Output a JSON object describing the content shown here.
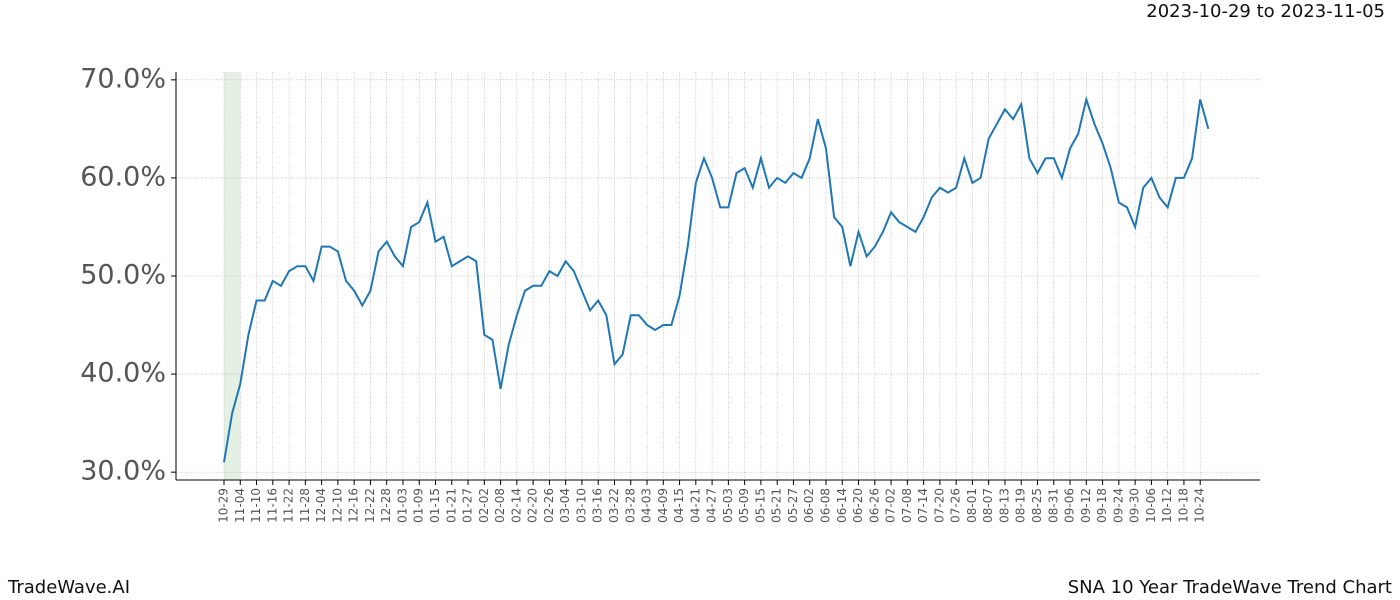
{
  "chart_data": {
    "type": "line",
    "subtitle": "2023-10-29 to 2023-11-05",
    "footer_left": "TradeWave.AI",
    "footer_right": "SNA 10 Year TradeWave Trend Chart",
    "categories": [
      "10-29",
      null,
      "11-04",
      null,
      "11-10",
      null,
      "11-16",
      null,
      "11-22",
      null,
      "11-28",
      null,
      "12-04",
      null,
      "12-10",
      null,
      "12-16",
      null,
      "12-22",
      null,
      "12-28",
      null,
      "01-03",
      null,
      "01-09",
      null,
      "01-15",
      null,
      "01-21",
      null,
      "01-27",
      null,
      "02-02",
      null,
      "02-08",
      null,
      "02-14",
      null,
      "02-20",
      null,
      "02-26",
      null,
      "03-04",
      null,
      "03-10",
      null,
      "03-16",
      null,
      "03-22",
      null,
      "03-28",
      null,
      "04-03",
      null,
      "04-09",
      null,
      "04-15",
      null,
      "04-21",
      null,
      "04-27",
      null,
      "05-03",
      null,
      "05-09",
      null,
      "05-15",
      null,
      "05-21",
      null,
      "05-27",
      null,
      "06-02",
      null,
      "06-08",
      null,
      "06-14",
      null,
      "06-20",
      null,
      "06-26",
      null,
      "07-02",
      null,
      "07-08",
      null,
      "07-14",
      null,
      "07-20",
      null,
      "07-26",
      null,
      "08-01",
      null,
      "08-07",
      null,
      "08-13",
      null,
      "08-19",
      null,
      "08-25",
      null,
      "08-31",
      null,
      "09-06",
      null,
      "09-12",
      null,
      "09-18",
      null,
      "09-24",
      null,
      "09-30",
      null,
      "10-06",
      null,
      "10-12",
      null,
      "10-18",
      null,
      "10-24",
      null
    ],
    "series": [
      {
        "color": "#1f77b4",
        "values": [
          31,
          36,
          39,
          44,
          47.5,
          47.5,
          49.5,
          49,
          50.5,
          51,
          51,
          49.5,
          53,
          53,
          52.5,
          49.5,
          48.5,
          47,
          48.5,
          52.5,
          53.5,
          52,
          51,
          55,
          55.5,
          57.5,
          53.5,
          54,
          51,
          51.5,
          52,
          51.5,
          44,
          43.5,
          38.5,
          43,
          46,
          48.5,
          49,
          49,
          50.5,
          50,
          51.5,
          50.5,
          48.5,
          46.5,
          47.5,
          46,
          41,
          42,
          46,
          46,
          45,
          44.5,
          45,
          45,
          48,
          53,
          59.5,
          62,
          60,
          57,
          57,
          60.5,
          61,
          59,
          62,
          59,
          60,
          59.5,
          60.5,
          60,
          62,
          66,
          63,
          56,
          55,
          51,
          54.5,
          52,
          53,
          54.5,
          56.5,
          55.5,
          55,
          54.5,
          56,
          58,
          59,
          58.5,
          59,
          62,
          59.5,
          60,
          64,
          65.5,
          67,
          66,
          67.5,
          62,
          60.5,
          62,
          62,
          60,
          63,
          64.5,
          68,
          65.5,
          63.5,
          61,
          57.5,
          57,
          55,
          59,
          60,
          58,
          57,
          60,
          60,
          62,
          68,
          65
        ]
      }
    ],
    "ylim": [
      29.2,
      70.8
    ],
    "yticks": [
      {
        "value": 30,
        "label": "30.0%"
      },
      {
        "value": 40,
        "label": "40.0%"
      },
      {
        "value": 50,
        "label": "50.0%"
      },
      {
        "value": 60,
        "label": "60.0%"
      },
      {
        "value": 70,
        "label": "70.0%"
      }
    ],
    "grid": true
  }
}
